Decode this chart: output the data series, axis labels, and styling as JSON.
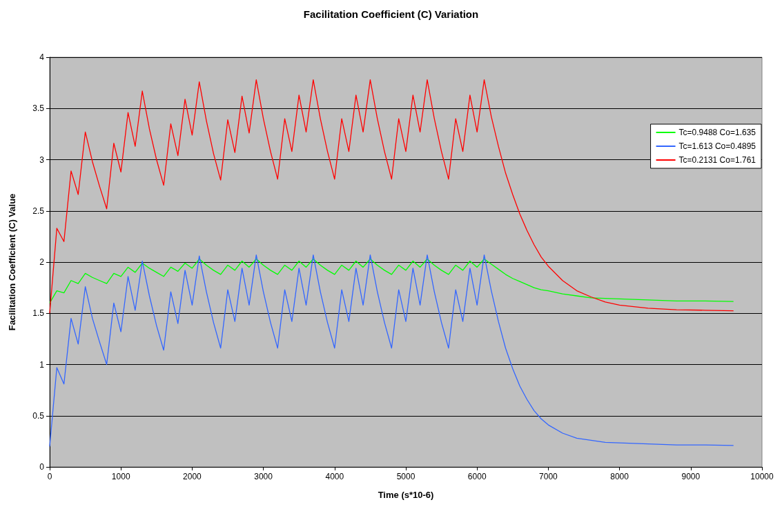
{
  "chart_data": {
    "type": "line",
    "title": "Facilitation Coefficient (C) Variation",
    "xlabel": "Time (s*10-6)",
    "ylabel": "Facilitation Coefficient (C) Value",
    "xlim": [
      0,
      10000
    ],
    "xticks": [
      0,
      1000,
      2000,
      3000,
      4000,
      5000,
      6000,
      7000,
      8000,
      9000,
      10000
    ],
    "ylim": [
      0,
      4
    ],
    "yticks": [
      0,
      0.5,
      1,
      1.5,
      2,
      2.5,
      3,
      3.5,
      4
    ],
    "grid": "y",
    "legend": "right",
    "marker": "none",
    "line_style": "solid",
    "x": [
      0,
      100,
      200,
      300,
      400,
      500,
      600,
      700,
      800,
      900,
      1000,
      1100,
      1200,
      1300,
      1400,
      1500,
      1600,
      1700,
      1800,
      1900,
      2000,
      2100,
      2200,
      2300,
      2400,
      2500,
      2600,
      2700,
      2800,
      2900,
      3000,
      3100,
      3200,
      3300,
      3400,
      3500,
      3600,
      3700,
      3800,
      3900,
      4000,
      4100,
      4200,
      4300,
      4400,
      4500,
      4600,
      4700,
      4800,
      4900,
      5000,
      5100,
      5200,
      5300,
      5400,
      5500,
      5600,
      5700,
      5800,
      5900,
      6000,
      6100,
      6200,
      6300,
      6400,
      6500,
      6600,
      6700,
      6800,
      6900,
      7000,
      7200,
      7400,
      7600,
      7800,
      8000,
      8400,
      8800,
      9200,
      9600
    ],
    "series": [
      {
        "name": "Tc=0.9488 Co=1.635",
        "color": "#00ff00",
        "values": [
          1.6,
          1.72,
          1.7,
          1.82,
          1.79,
          1.89,
          1.85,
          1.82,
          1.79,
          1.89,
          1.86,
          1.95,
          1.9,
          1.99,
          1.94,
          1.9,
          1.86,
          1.95,
          1.91,
          1.99,
          1.94,
          2.03,
          1.97,
          1.92,
          1.88,
          1.97,
          1.92,
          2.01,
          1.95,
          2.03,
          1.97,
          1.92,
          1.88,
          1.97,
          1.92,
          2.01,
          1.95,
          2.03,
          1.97,
          1.92,
          1.88,
          1.97,
          1.92,
          2.01,
          1.95,
          2.03,
          1.97,
          1.92,
          1.88,
          1.97,
          1.92,
          2.01,
          1.95,
          2.03,
          1.97,
          1.92,
          1.88,
          1.97,
          1.92,
          2.01,
          1.95,
          2.03,
          1.98,
          1.93,
          1.88,
          1.84,
          1.81,
          1.78,
          1.75,
          1.73,
          1.72,
          1.69,
          1.67,
          1.65,
          1.645,
          1.64,
          1.63,
          1.62,
          1.62,
          1.615
        ]
      },
      {
        "name": "Tc=1.613 Co=0.4895",
        "color": "#3366ff",
        "values": [
          0.2,
          0.97,
          0.81,
          1.45,
          1.2,
          1.76,
          1.45,
          1.22,
          1.0,
          1.6,
          1.32,
          1.86,
          1.53,
          2.01,
          1.67,
          1.38,
          1.14,
          1.71,
          1.4,
          1.92,
          1.58,
          2.06,
          1.71,
          1.41,
          1.16,
          1.73,
          1.42,
          1.94,
          1.58,
          2.07,
          1.71,
          1.41,
          1.16,
          1.73,
          1.42,
          1.94,
          1.58,
          2.07,
          1.71,
          1.41,
          1.16,
          1.73,
          1.42,
          1.94,
          1.58,
          2.07,
          1.71,
          1.41,
          1.16,
          1.73,
          1.42,
          1.94,
          1.58,
          2.07,
          1.71,
          1.41,
          1.16,
          1.73,
          1.42,
          1.94,
          1.58,
          2.07,
          1.72,
          1.42,
          1.16,
          0.96,
          0.79,
          0.66,
          0.55,
          0.47,
          0.41,
          0.33,
          0.28,
          0.26,
          0.24,
          0.235,
          0.225,
          0.215,
          0.215,
          0.21
        ]
      },
      {
        "name": "Tc=0.2131 Co=1.761",
        "color": "#ff0000",
        "values": [
          1.5,
          2.33,
          2.2,
          2.89,
          2.66,
          3.27,
          2.98,
          2.74,
          2.52,
          3.16,
          2.88,
          3.46,
          3.13,
          3.67,
          3.3,
          3.0,
          2.75,
          3.35,
          3.04,
          3.59,
          3.24,
          3.76,
          3.38,
          3.06,
          2.8,
          3.39,
          3.07,
          3.62,
          3.26,
          3.78,
          3.4,
          3.08,
          2.81,
          3.4,
          3.08,
          3.63,
          3.27,
          3.78,
          3.4,
          3.08,
          2.81,
          3.4,
          3.08,
          3.63,
          3.27,
          3.78,
          3.4,
          3.08,
          2.81,
          3.4,
          3.08,
          3.63,
          3.27,
          3.78,
          3.4,
          3.08,
          2.81,
          3.4,
          3.08,
          3.63,
          3.27,
          3.78,
          3.42,
          3.13,
          2.87,
          2.66,
          2.47,
          2.31,
          2.17,
          2.05,
          1.96,
          1.82,
          1.72,
          1.66,
          1.61,
          1.58,
          1.55,
          1.535,
          1.53,
          1.525
        ]
      }
    ]
  }
}
